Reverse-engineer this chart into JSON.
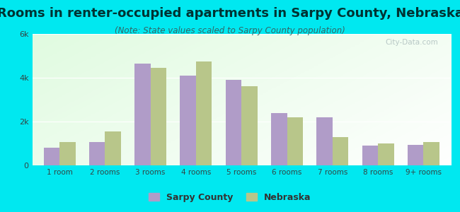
{
  "title": "Rooms in renter-occupied apartments in Sarpy County, Nebraska",
  "subtitle": "(Note: State values scaled to Sarpy County population)",
  "categories": [
    "1 room",
    "2 rooms",
    "3 rooms",
    "4 rooms",
    "5 rooms",
    "6 rooms",
    "7 rooms",
    "8 rooms",
    "9+ rooms"
  ],
  "sarpy_values": [
    800,
    1050,
    4650,
    4100,
    3900,
    2400,
    2200,
    900,
    950
  ],
  "nebraska_values": [
    1050,
    1550,
    4450,
    4750,
    3600,
    2200,
    1300,
    1000,
    1050
  ],
  "sarpy_color": "#b09cc8",
  "nebraska_color": "#b8c68a",
  "background_color_outer": "#00e8f0",
  "ylim": [
    0,
    6000
  ],
  "yticks": [
    0,
    2000,
    4000,
    6000
  ],
  "ytick_labels": [
    "0",
    "2k",
    "4k",
    "6k"
  ],
  "title_fontsize": 13,
  "subtitle_fontsize": 8.5,
  "title_color": "#003333",
  "subtitle_color": "#336666",
  "legend_labels": [
    "Sarpy County",
    "Nebraska"
  ],
  "watermark": "City-Data.com"
}
